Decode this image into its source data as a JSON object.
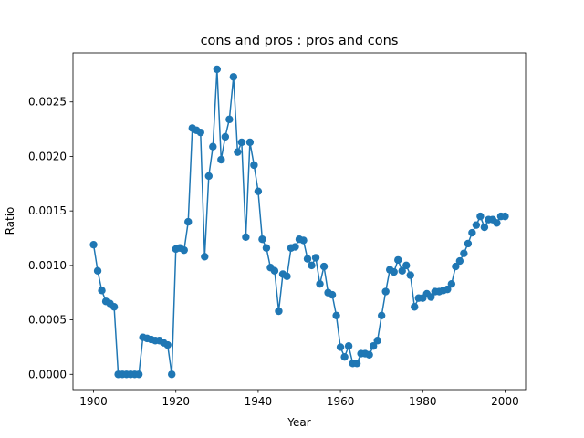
{
  "chart_data": {
    "type": "line",
    "title": "cons and pros : pros and cons",
    "xlabel": "Year",
    "ylabel": "Ratio",
    "xlim": [
      1895,
      2005
    ],
    "ylim": [
      -0.00014,
      0.00295
    ],
    "xticks": [
      1900,
      1920,
      1940,
      1960,
      1980,
      2000
    ],
    "xtick_labels": [
      "1900",
      "1920",
      "1940",
      "1960",
      "1980",
      "2000"
    ],
    "yticks": [
      0,
      0.0005,
      0.001,
      0.0015,
      0.002,
      0.0025
    ],
    "ytick_labels": [
      "0.0000",
      "0.0005",
      "0.0010",
      "0.0015",
      "0.0020",
      "0.0025"
    ],
    "grid": false,
    "marker": "circle",
    "line_color": "#1f77b4",
    "series": [
      {
        "x": [
          1900,
          1901,
          1902,
          1903,
          1904,
          1905,
          1906,
          1907,
          1908,
          1909,
          1910,
          1911,
          1912,
          1913,
          1914,
          1915,
          1916,
          1917,
          1918,
          1919,
          1920,
          1921,
          1922,
          1923,
          1924,
          1925,
          1926,
          1927,
          1928,
          1929,
          1930,
          1931,
          1932,
          1933,
          1934,
          1935,
          1936,
          1937,
          1938,
          1939,
          1940,
          1941,
          1942,
          1943,
          1944,
          1945,
          1946,
          1947,
          1948,
          1949,
          1950,
          1951,
          1952,
          1953,
          1954,
          1955,
          1956,
          1957,
          1958,
          1959,
          1960,
          1961,
          1962,
          1963,
          1964,
          1965,
          1966,
          1967,
          1968,
          1969,
          1970,
          1971,
          1972,
          1973,
          1974,
          1975,
          1976,
          1977,
          1978,
          1979,
          1980,
          1981,
          1982,
          1983,
          1984,
          1985,
          1986,
          1987,
          1988,
          1989,
          1990,
          1991,
          1992,
          1993,
          1994,
          1995,
          1996,
          1997,
          1998,
          1999,
          2000
        ],
        "y": [
          0.00119,
          0.00095,
          0.00077,
          0.00067,
          0.00065,
          0.00062,
          0.0,
          0.0,
          0.0,
          0.0,
          0.0,
          0.0,
          0.00034,
          0.00033,
          0.00032,
          0.00031,
          0.00031,
          0.00029,
          0.00027,
          0.0,
          0.00115,
          0.00116,
          0.00114,
          0.0014,
          0.00226,
          0.00224,
          0.00222,
          0.00108,
          0.00182,
          0.00209,
          0.0028,
          0.00197,
          0.00218,
          0.00234,
          0.00273,
          0.00204,
          0.00213,
          0.00126,
          0.00213,
          0.00192,
          0.00168,
          0.00124,
          0.00116,
          0.00098,
          0.00095,
          0.00058,
          0.00092,
          0.0009,
          0.00116,
          0.00117,
          0.00124,
          0.00123,
          0.00106,
          0.001,
          0.00107,
          0.00083,
          0.00099,
          0.00075,
          0.00073,
          0.00054,
          0.00025,
          0.00016,
          0.00026,
          0.0001,
          0.0001,
          0.00019,
          0.00019,
          0.00018,
          0.00026,
          0.00031,
          0.00054,
          0.00076,
          0.00096,
          0.00094,
          0.00105,
          0.00095,
          0.001,
          0.00091,
          0.00062,
          0.0007,
          0.0007,
          0.00074,
          0.00071,
          0.00076,
          0.00076,
          0.00077,
          0.00078,
          0.00083,
          0.00099,
          0.00104,
          0.00111,
          0.0012,
          0.0013,
          0.00137,
          0.00145,
          0.00135,
          0.00142,
          0.00142,
          0.00139,
          0.00145,
          0.00145
        ]
      }
    ]
  }
}
